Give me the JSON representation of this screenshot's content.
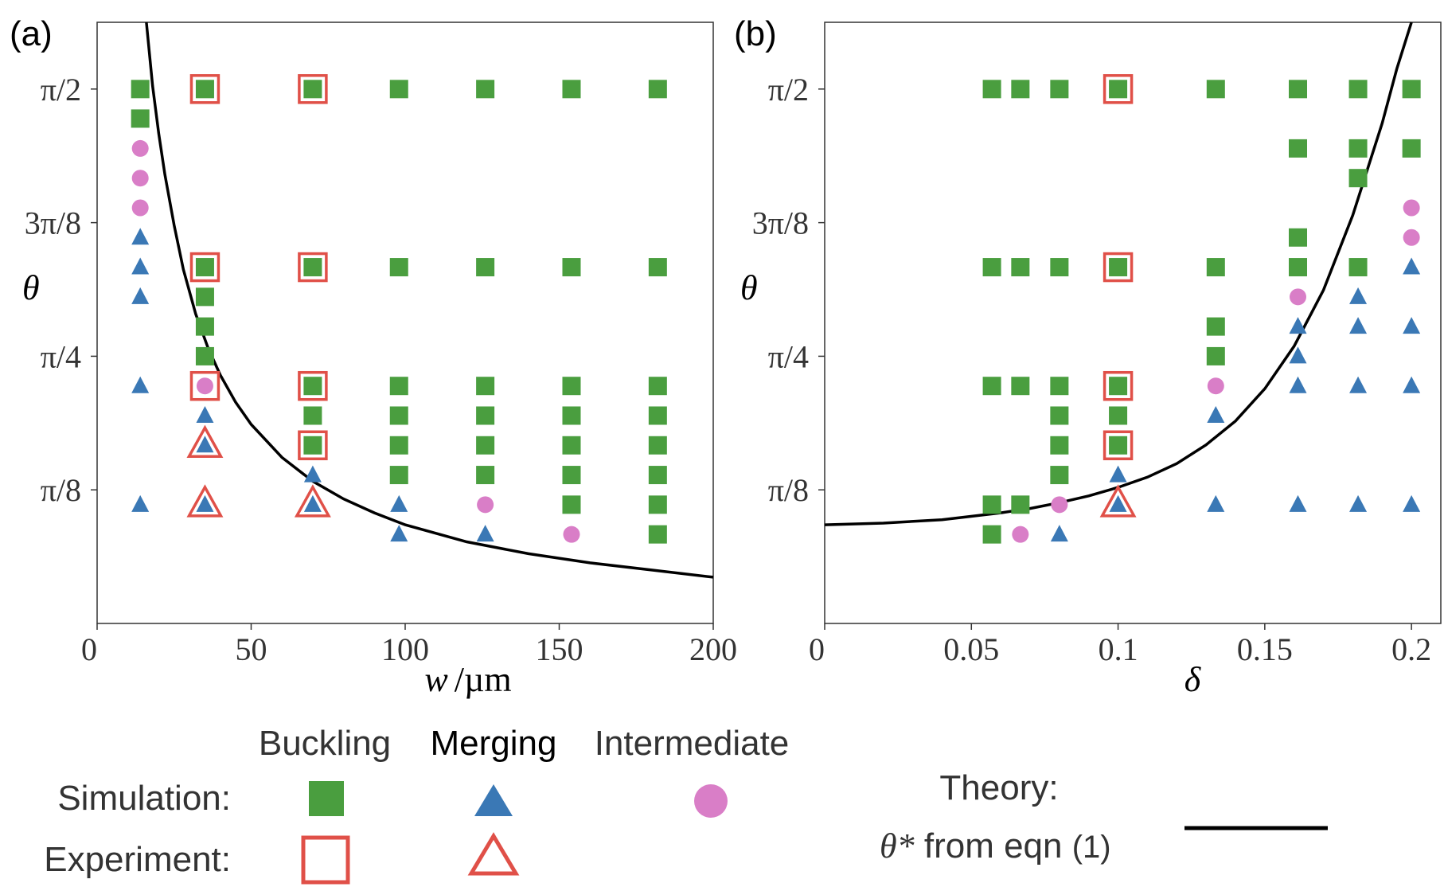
{
  "chart_data": [
    {
      "type": "scatter",
      "panel_label": "(a)",
      "xlabel_var": "w",
      "xlabel_unit": "/µm",
      "ylabel": "θ",
      "xlim": [
        0,
        200
      ],
      "ylim": [
        0,
        1.767
      ],
      "x_ticks": [
        {
          "v": 0,
          "label": "0"
        },
        {
          "v": 50,
          "label": "50"
        },
        {
          "v": 100,
          "label": "100"
        },
        {
          "v": 150,
          "label": "150"
        },
        {
          "v": 200,
          "label": "200"
        }
      ],
      "y_ticks": [
        {
          "v": 0.3927,
          "label": "π/8"
        },
        {
          "v": 0.7854,
          "label": "π/4"
        },
        {
          "v": 1.1781,
          "label": "3π/8"
        },
        {
          "v": 1.5708,
          "label": "π/2"
        }
      ],
      "series": [
        {
          "name": "Buckling (simulation)",
          "marker": "square",
          "color": "#4a9e3f",
          "points": [
            [
              14,
              1.5708
            ],
            [
              14,
              1.484
            ],
            [
              35,
              1.5708
            ],
            [
              35,
              1.0472
            ],
            [
              35,
              0.9599
            ],
            [
              35,
              0.8727
            ],
            [
              35,
              0.7854
            ],
            [
              70,
              1.5708
            ],
            [
              70,
              1.0472
            ],
            [
              70,
              0.6981
            ],
            [
              70,
              0.6109
            ],
            [
              70,
              0.5236
            ],
            [
              98,
              1.5708
            ],
            [
              98,
              1.0472
            ],
            [
              98,
              0.6981
            ],
            [
              98,
              0.6109
            ],
            [
              98,
              0.5236
            ],
            [
              98,
              0.4363
            ],
            [
              126,
              1.5708
            ],
            [
              126,
              1.0472
            ],
            [
              126,
              0.6981
            ],
            [
              126,
              0.6109
            ],
            [
              126,
              0.5236
            ],
            [
              126,
              0.4363
            ],
            [
              154,
              1.5708
            ],
            [
              154,
              1.0472
            ],
            [
              154,
              0.6981
            ],
            [
              154,
              0.6109
            ],
            [
              154,
              0.5236
            ],
            [
              154,
              0.4363
            ],
            [
              154,
              0.3491
            ],
            [
              182,
              1.5708
            ],
            [
              182,
              1.0472
            ],
            [
              182,
              0.6981
            ],
            [
              182,
              0.6109
            ],
            [
              182,
              0.5236
            ],
            [
              182,
              0.4363
            ],
            [
              182,
              0.3491
            ],
            [
              182,
              0.2618
            ]
          ]
        },
        {
          "name": "Merging (simulation)",
          "marker": "triangle",
          "color": "#3a78b5",
          "points": [
            [
              14,
              1.1345
            ],
            [
              14,
              1.0472
            ],
            [
              14,
              0.9599
            ],
            [
              14,
              0.6981
            ],
            [
              14,
              0.3491
            ],
            [
              35,
              0.6109
            ],
            [
              35,
              0.5236
            ],
            [
              35,
              0.3491
            ],
            [
              70,
              0.4363
            ],
            [
              70,
              0.3491
            ],
            [
              98,
              0.3491
            ],
            [
              98,
              0.2618
            ],
            [
              126,
              0.2618
            ]
          ]
        },
        {
          "name": "Intermediate (simulation)",
          "marker": "circle",
          "color": "#d97ec7",
          "points": [
            [
              14,
              1.3963
            ],
            [
              14,
              1.309
            ],
            [
              14,
              1.2217
            ],
            [
              35,
              0.6981
            ],
            [
              126,
              0.3491
            ],
            [
              154,
              0.2618
            ]
          ]
        },
        {
          "name": "Buckling (experiment)",
          "marker": "open-square",
          "color": "#e05048",
          "points": [
            [
              35,
              1.5708
            ],
            [
              35,
              1.0472
            ],
            [
              35,
              0.6981
            ],
            [
              70,
              1.5708
            ],
            [
              70,
              1.0472
            ],
            [
              70,
              0.6981
            ],
            [
              70,
              0.5236
            ]
          ]
        },
        {
          "name": "Merging (experiment)",
          "marker": "open-triangle",
          "color": "#e05048",
          "points": [
            [
              35,
              0.5236
            ],
            [
              35,
              0.3491
            ],
            [
              70,
              0.3491
            ]
          ]
        }
      ],
      "theory_curve": [
        [
          16,
          1.767
        ],
        [
          18,
          1.58
        ],
        [
          20,
          1.44
        ],
        [
          22,
          1.32
        ],
        [
          25,
          1.17
        ],
        [
          28,
          1.04
        ],
        [
          32,
          0.91
        ],
        [
          36,
          0.81
        ],
        [
          40,
          0.73
        ],
        [
          45,
          0.65
        ],
        [
          50,
          0.585
        ],
        [
          60,
          0.488
        ],
        [
          70,
          0.418
        ],
        [
          80,
          0.366
        ],
        [
          90,
          0.325
        ],
        [
          100,
          0.29
        ],
        [
          120,
          0.24
        ],
        [
          140,
          0.205
        ],
        [
          160,
          0.178
        ],
        [
          180,
          0.157
        ],
        [
          200,
          0.136
        ]
      ]
    },
    {
      "type": "scatter",
      "panel_label": "(b)",
      "xlabel_var": "δ",
      "xlabel_unit": "",
      "ylabel": "θ",
      "xlim": [
        0,
        0.21
      ],
      "ylim": [
        0,
        1.767
      ],
      "x_ticks": [
        {
          "v": 0,
          "label": "0"
        },
        {
          "v": 0.05,
          "label": "0.05"
        },
        {
          "v": 0.1,
          "label": "0.1"
        },
        {
          "v": 0.15,
          "label": "0.15"
        },
        {
          "v": 0.2,
          "label": "0.2"
        }
      ],
      "y_ticks": [
        {
          "v": 0.3927,
          "label": "π/8"
        },
        {
          "v": 0.7854,
          "label": "π/4"
        },
        {
          "v": 1.1781,
          "label": "3π/8"
        },
        {
          "v": 1.5708,
          "label": "π/2"
        }
      ],
      "series": [
        {
          "name": "Buckling (simulation)",
          "marker": "square",
          "color": "#4a9e3f",
          "points": [
            [
              0.057,
              1.5708
            ],
            [
              0.057,
              1.0472
            ],
            [
              0.057,
              0.6981
            ],
            [
              0.057,
              0.3491
            ],
            [
              0.057,
              0.2618
            ],
            [
              0.0667,
              1.5708
            ],
            [
              0.0667,
              1.0472
            ],
            [
              0.0667,
              0.6981
            ],
            [
              0.0667,
              0.3491
            ],
            [
              0.08,
              1.5708
            ],
            [
              0.08,
              1.0472
            ],
            [
              0.08,
              0.6981
            ],
            [
              0.08,
              0.6109
            ],
            [
              0.08,
              0.5236
            ],
            [
              0.08,
              0.4363
            ],
            [
              0.1,
              1.5708
            ],
            [
              0.1,
              1.0472
            ],
            [
              0.1,
              0.6981
            ],
            [
              0.1,
              0.6109
            ],
            [
              0.1,
              0.5236
            ],
            [
              0.1333,
              1.5708
            ],
            [
              0.1333,
              1.0472
            ],
            [
              0.1333,
              0.8727
            ],
            [
              0.1333,
              0.7854
            ],
            [
              0.1613,
              1.5708
            ],
            [
              0.1613,
              1.3963
            ],
            [
              0.1613,
              1.1345
            ],
            [
              0.1613,
              1.0472
            ],
            [
              0.1818,
              1.5708
            ],
            [
              0.1818,
              1.3963
            ],
            [
              0.1818,
              1.309
            ],
            [
              0.1818,
              1.0472
            ],
            [
              0.2,
              1.5708
            ],
            [
              0.2,
              1.3963
            ]
          ]
        },
        {
          "name": "Merging (simulation)",
          "marker": "triangle",
          "color": "#3a78b5",
          "points": [
            [
              0.08,
              0.2618
            ],
            [
              0.1,
              0.4363
            ],
            [
              0.1,
              0.3491
            ],
            [
              0.1333,
              0.6109
            ],
            [
              0.1333,
              0.3491
            ],
            [
              0.1613,
              0.8727
            ],
            [
              0.1613,
              0.7854
            ],
            [
              0.1613,
              0.6981
            ],
            [
              0.1613,
              0.3491
            ],
            [
              0.1818,
              0.9599
            ],
            [
              0.1818,
              0.8727
            ],
            [
              0.1818,
              0.6981
            ],
            [
              0.1818,
              0.3491
            ],
            [
              0.2,
              1.0472
            ],
            [
              0.2,
              0.8727
            ],
            [
              0.2,
              0.6981
            ],
            [
              0.2,
              0.3491
            ]
          ]
        },
        {
          "name": "Intermediate (simulation)",
          "marker": "circle",
          "color": "#d97ec7",
          "points": [
            [
              0.0667,
              0.2618
            ],
            [
              0.08,
              0.3491
            ],
            [
              0.1333,
              0.6981
            ],
            [
              0.1613,
              0.9599
            ],
            [
              0.2,
              1.2217
            ],
            [
              0.2,
              1.1345
            ]
          ]
        },
        {
          "name": "Buckling (experiment)",
          "marker": "open-square",
          "color": "#e05048",
          "points": [
            [
              0.1,
              1.5708
            ],
            [
              0.1,
              1.0472
            ],
            [
              0.1,
              0.6981
            ],
            [
              0.1,
              0.5236
            ]
          ]
        },
        {
          "name": "Merging (experiment)",
          "marker": "open-triangle",
          "color": "#e05048",
          "points": [
            [
              0.1,
              0.3491
            ]
          ]
        }
      ],
      "theory_curve": [
        [
          0,
          0.29
        ],
        [
          0.02,
          0.295
        ],
        [
          0.04,
          0.305
        ],
        [
          0.06,
          0.325
        ],
        [
          0.07,
          0.338
        ],
        [
          0.08,
          0.355
        ],
        [
          0.09,
          0.375
        ],
        [
          0.1,
          0.4
        ],
        [
          0.11,
          0.43
        ],
        [
          0.12,
          0.47
        ],
        [
          0.13,
          0.525
        ],
        [
          0.14,
          0.595
        ],
        [
          0.15,
          0.69
        ],
        [
          0.16,
          0.815
        ],
        [
          0.17,
          0.98
        ],
        [
          0.18,
          1.2
        ],
        [
          0.19,
          1.47
        ],
        [
          0.195,
          1.63
        ],
        [
          0.2,
          1.767
        ]
      ]
    }
  ],
  "legend": {
    "col_buckling": "Buckling",
    "col_merging": "Merging",
    "col_intermediate": "Intermediate",
    "row_simulation": "Simulation:",
    "row_experiment": "Experiment:",
    "theory_title": "Theory:",
    "theory_symbol": "θ*",
    "theory_text": " from eqn ",
    "theory_ref": "(1)"
  },
  "colors": {
    "buckling": "#4a9e3f",
    "merging": "#3a78b5",
    "intermediate": "#d97ec7",
    "experiment": "#e05048",
    "theory": "#000000"
  }
}
